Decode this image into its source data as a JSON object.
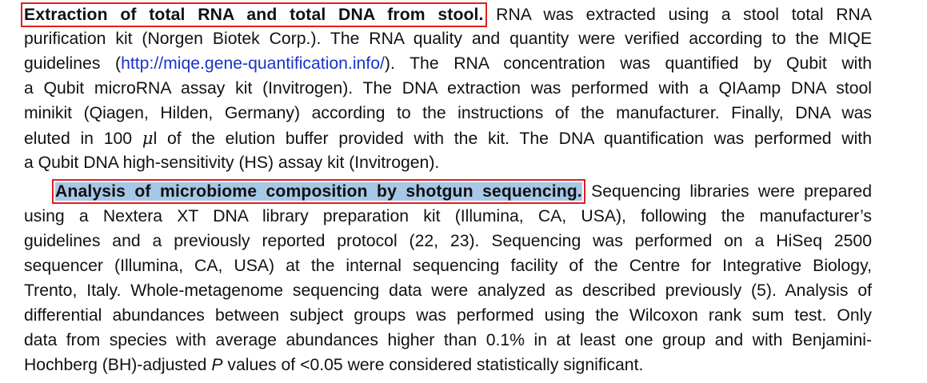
{
  "paragraph1": {
    "heading": "Extraction of total RNA and total DNA from stool.",
    "lines": [
      "RNA was extracted using a stool total RNA",
      "purification kit (Norgen Biotek Corp.). The RNA quality and quantity were verified according to the MIQE",
      "guidelines (",
      "http://miqe.gene-quantification.info/",
      "). The RNA concentration was quantified by Qubit with",
      "a Qubit microRNA assay kit (Invitrogen). The DNA extraction was performed with a QIAamp DNA stool",
      "minikit (Qiagen, Hilden, Germany) according to the instructions of the manufacturer. Finally, DNA was",
      "eluted in 100 ",
      "μ",
      "l of the elution buffer provided with the kit. The DNA quantification was performed with",
      "a Qubit DNA high-sensitivity (HS) assay kit (Invitrogen)."
    ]
  },
  "paragraph2": {
    "heading": "Analysis of microbiome composition by shotgun sequencing.",
    "lines": [
      "Sequencing libraries were prepared",
      "using a Nextera XT DNA library preparation kit (Illumina, CA, USA), following the manufacturer’s",
      "guidelines and a previously reported protocol (22, 23). Sequencing was performed on a HiSeq 2500",
      "sequencer (Illumina, CA, USA) at the internal sequencing facility of the Centre for Integrative Biology,",
      "Trento, Italy. Whole-metagenome sequencing data were analyzed as described previously (5). Analysis of",
      "differential abundances between subject groups was performed using the Wilcoxon rank sum test. Only",
      "data from species with average abundances higher than 0.1% in at least one group and with Benjamini-",
      "Hochberg (BH)-adjusted ",
      "P",
      " values of <0.05 were considered statistically significant."
    ]
  },
  "colors": {
    "annotation_box": "#e0201c",
    "selection_highlight": "#a7c7e7",
    "link": "#1a33c8"
  }
}
